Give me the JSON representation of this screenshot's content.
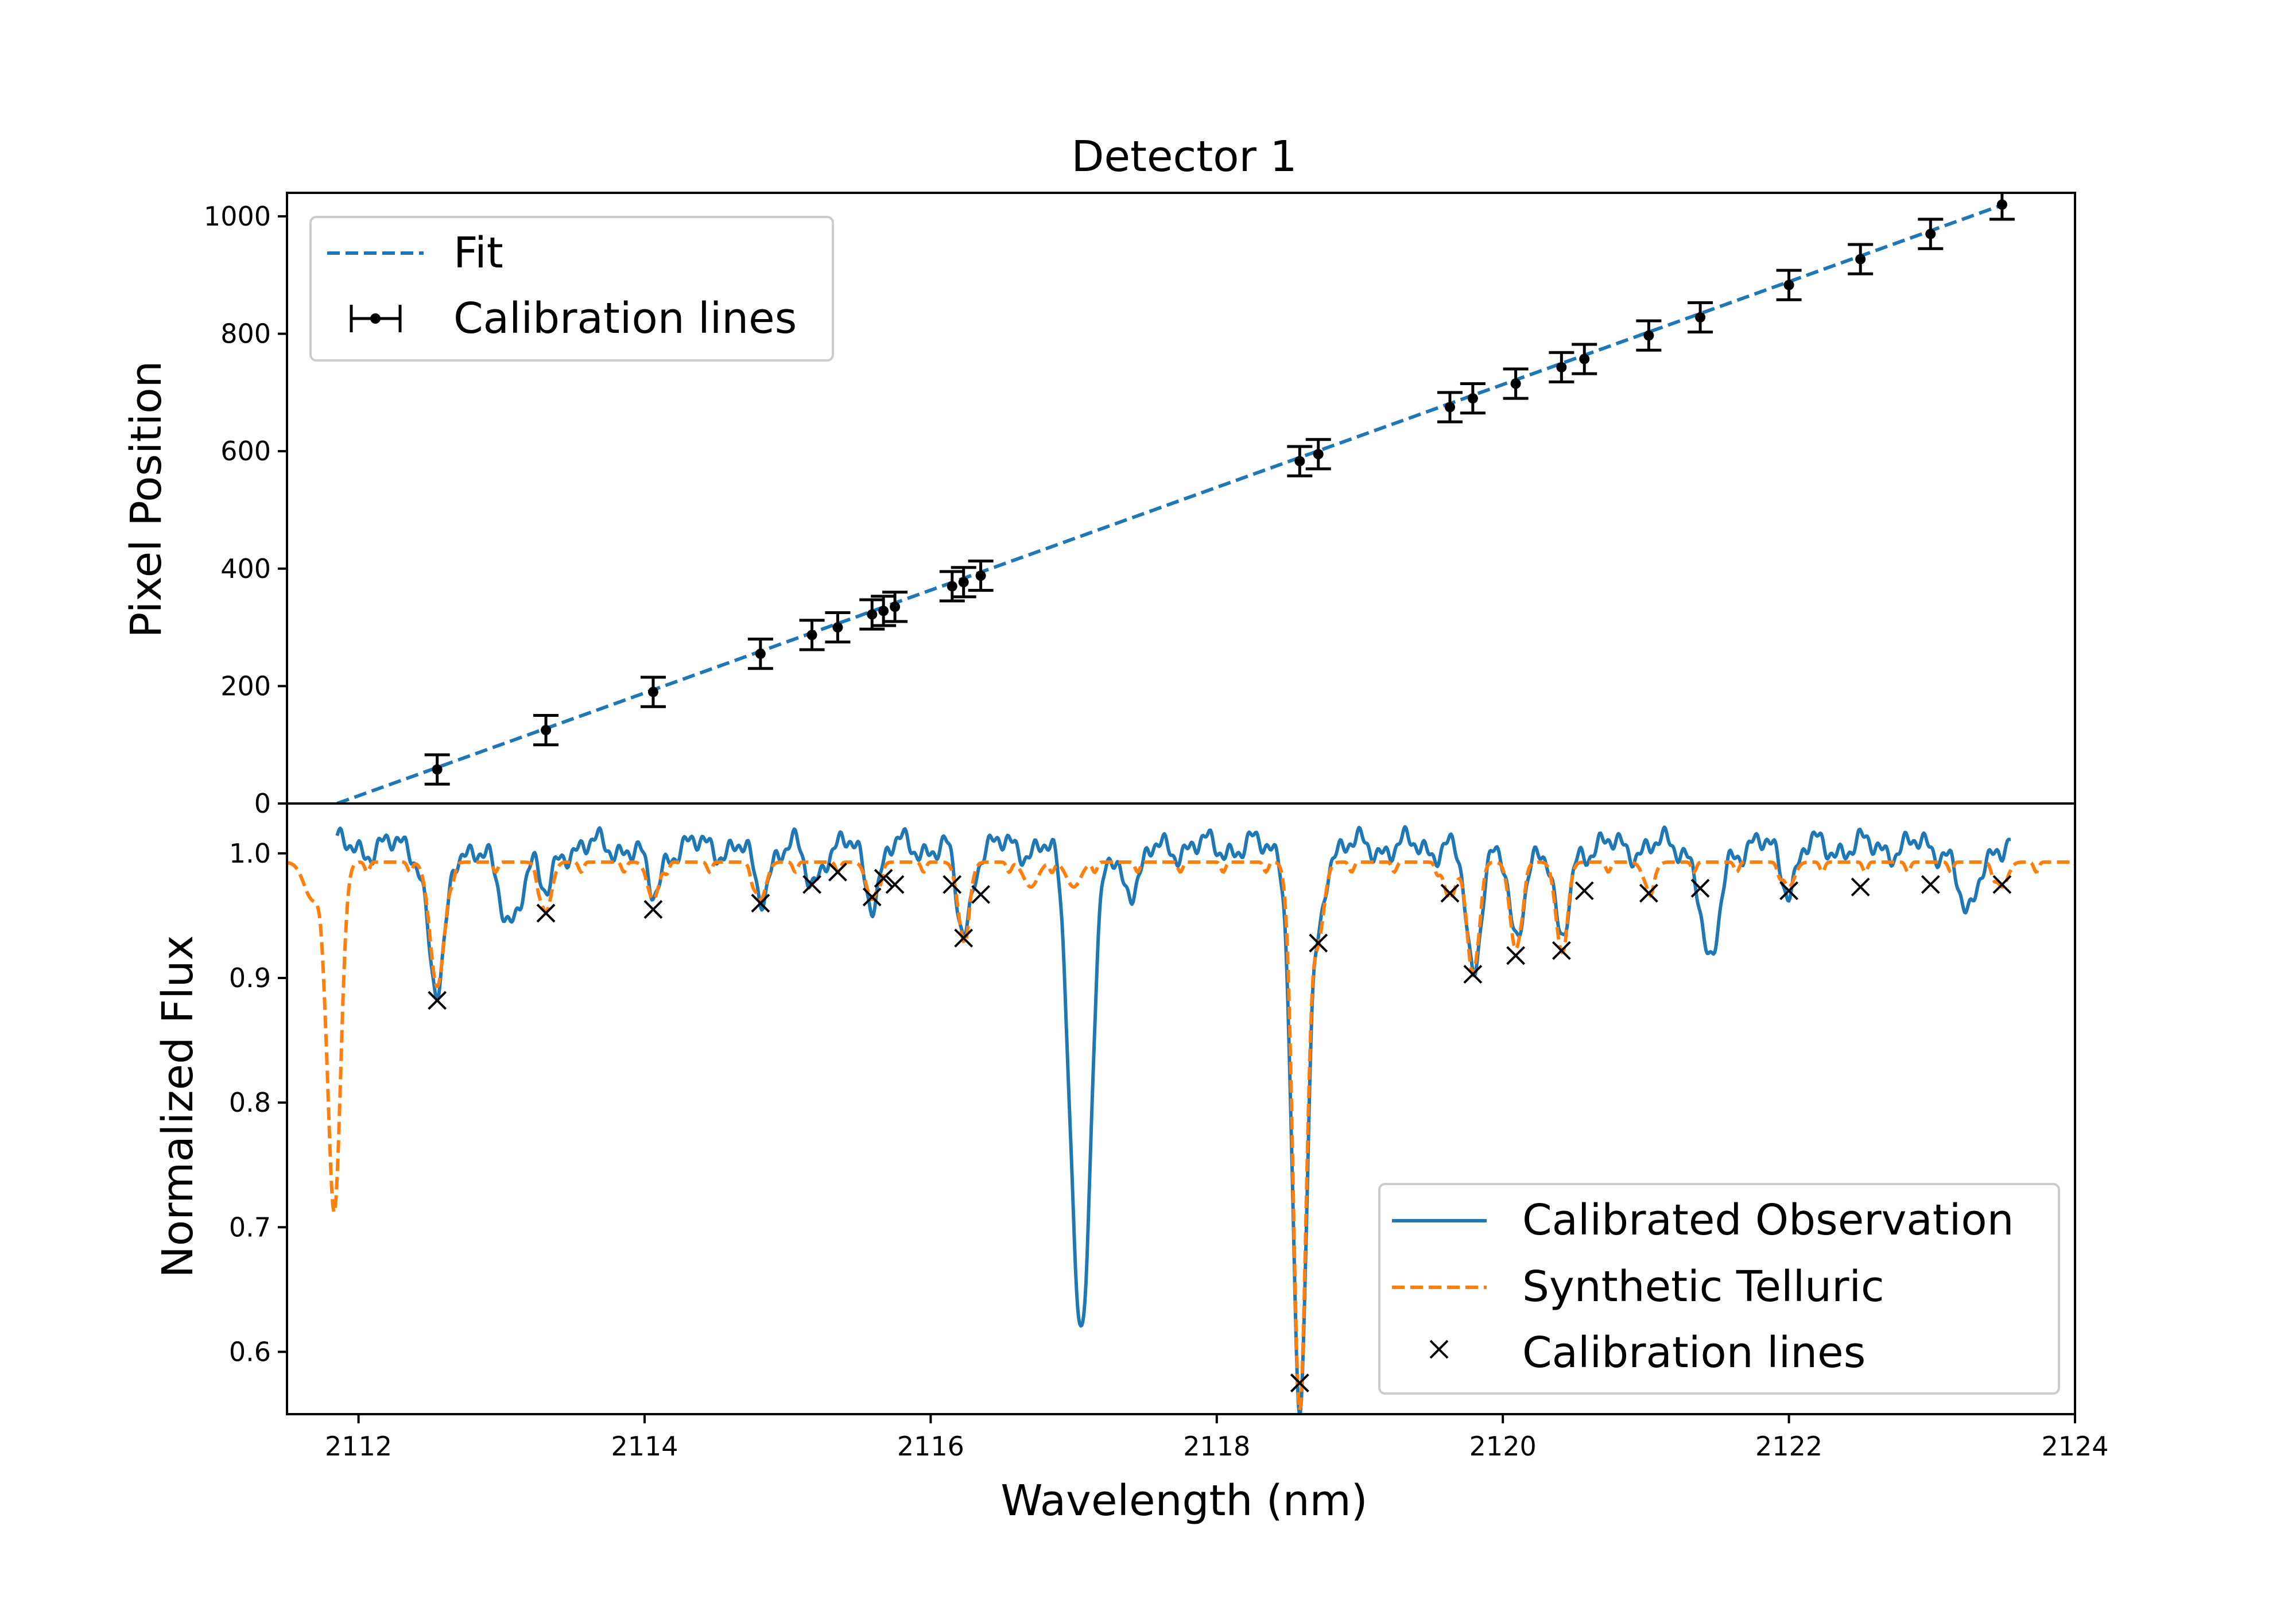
{
  "chart_data": [
    {
      "type": "scatter",
      "title": "Detector 1",
      "xlabel": "",
      "ylabel": "Pixel Position",
      "xlim": [
        2111.5,
        2124
      ],
      "ylim": [
        0,
        1040
      ],
      "yticks": [
        0,
        200,
        400,
        600,
        800,
        1000
      ],
      "legend_position": "upper left",
      "fit": {
        "name": "Fit",
        "color": "#1f77b4",
        "style": "dashed",
        "x": [
          2111.85,
          2123.5
        ],
        "y": [
          0,
          1020
        ]
      },
      "series": [
        {
          "name": "Calibration lines",
          "color": "#000000",
          "x": [
            2112.55,
            2113.31,
            2114.06,
            2114.81,
            2115.17,
            2115.35,
            2115.59,
            2115.67,
            2115.75,
            2116.15,
            2116.23,
            2116.35,
            2118.58,
            2118.71,
            2119.63,
            2119.79,
            2120.09,
            2120.41,
            2120.57,
            2121.02,
            2121.38,
            2122.0,
            2122.5,
            2122.99,
            2123.49
          ],
          "y": [
            58,
            125,
            190,
            255,
            287,
            300,
            322,
            328,
            335,
            370,
            377,
            388,
            583,
            595,
            675,
            690,
            715,
            743,
            757,
            797,
            828,
            883,
            927,
            970,
            1020
          ],
          "yerr": 25
        }
      ]
    },
    {
      "type": "line",
      "xlabel": "Wavelength (nm)",
      "ylabel": "Normalized Flux",
      "xlim": [
        2111.5,
        2124
      ],
      "ylim": [
        0.55,
        1.04
      ],
      "xticks": [
        2112,
        2114,
        2116,
        2118,
        2120,
        2122,
        2124
      ],
      "yticks": [
        0.6,
        0.7,
        0.8,
        0.9,
        1.0
      ],
      "legend_position": "lower right",
      "series": [
        {
          "name": "Calibrated Observation",
          "color": "#1f77b4",
          "style": "solid",
          "x_range": [
            2111.85,
            2123.55
          ],
          "baseline": 1.005,
          "dips": [
            [
              2112.55,
              0.12,
              0.06
            ],
            [
              2113.05,
              0.06,
              0.08
            ],
            [
              2113.31,
              0.04,
              0.05
            ],
            [
              2114.06,
              0.04,
              0.05
            ],
            [
              2114.81,
              0.04,
              0.05
            ],
            [
              2115.17,
              0.03,
              0.05
            ],
            [
              2115.59,
              0.04,
              0.05
            ],
            [
              2116.23,
              0.07,
              0.05
            ],
            [
              2117.05,
              0.385,
              0.07
            ],
            [
              2117.4,
              0.03,
              0.08
            ],
            [
              2118.58,
              0.46,
              0.05
            ],
            [
              2118.71,
              0.06,
              0.04
            ],
            [
              2119.79,
              0.1,
              0.05
            ],
            [
              2120.09,
              0.08,
              0.05
            ],
            [
              2120.41,
              0.08,
              0.05
            ],
            [
              2121.45,
              0.1,
              0.06
            ],
            [
              2122.0,
              0.03,
              0.05
            ],
            [
              2123.25,
              0.06,
              0.06
            ]
          ]
        },
        {
          "name": "Synthetic Telluric",
          "color": "#ff7f0e",
          "style": "dashed",
          "x_range": [
            2111.5,
            2124
          ],
          "baseline": 0.993,
          "dips": [
            [
              2111.68,
              0.03,
              0.06
            ],
            [
              2111.83,
              0.28,
              0.045
            ],
            [
              2112.55,
              0.1,
              0.05
            ],
            [
              2113.31,
              0.04,
              0.04
            ],
            [
              2114.06,
              0.03,
              0.04
            ],
            [
              2114.81,
              0.03,
              0.04
            ],
            [
              2115.59,
              0.03,
              0.04
            ],
            [
              2116.23,
              0.06,
              0.04
            ],
            [
              2116.7,
              0.02,
              0.05
            ],
            [
              2117.0,
              0.02,
              0.05
            ],
            [
              2118.58,
              0.44,
              0.045
            ],
            [
              2118.71,
              0.06,
              0.04
            ],
            [
              2119.63,
              0.03,
              0.04
            ],
            [
              2119.79,
              0.09,
              0.04
            ],
            [
              2120.09,
              0.07,
              0.04
            ],
            [
              2120.41,
              0.07,
              0.04
            ],
            [
              2121.02,
              0.02,
              0.04
            ],
            [
              2122.0,
              0.02,
              0.04
            ],
            [
              2123.49,
              0.02,
              0.04
            ]
          ]
        },
        {
          "name": "Calibration lines",
          "color": "#000000",
          "marker": "x",
          "x": [
            2112.55,
            2113.31,
            2114.06,
            2114.81,
            2115.17,
            2115.35,
            2115.59,
            2115.67,
            2115.75,
            2116.15,
            2116.23,
            2116.35,
            2118.58,
            2118.71,
            2119.63,
            2119.79,
            2120.09,
            2120.41,
            2120.57,
            2121.02,
            2121.38,
            2122.0,
            2122.5,
            2122.99,
            2123.49
          ],
          "y": [
            0.882,
            0.952,
            0.955,
            0.96,
            0.975,
            0.985,
            0.965,
            0.98,
            0.975,
            0.975,
            0.932,
            0.967,
            0.575,
            0.928,
            0.968,
            0.903,
            0.918,
            0.922,
            0.97,
            0.968,
            0.972,
            0.97,
            0.973,
            0.975,
            0.975
          ]
        }
      ]
    }
  ]
}
